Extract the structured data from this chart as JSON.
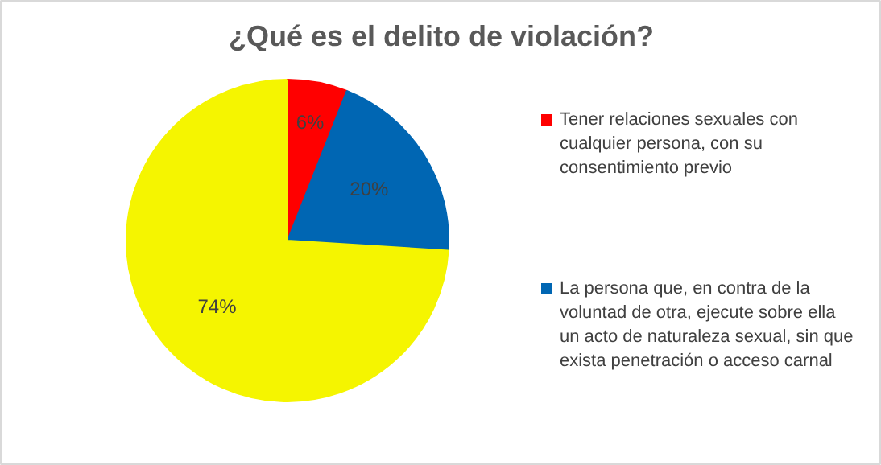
{
  "chart_data": {
    "type": "pie",
    "title": "¿Qué es el delito de violación?",
    "categories": [
      "Tener relaciones sexuales con cualquier persona, con su consentimiento previo",
      "La persona que, en contra de la voluntad de otra, ejecute sobre ella un acto de naturaleza sexual, sin que exista penetración o acceso carnal",
      null
    ],
    "values": [
      6,
      20,
      74
    ],
    "colors": [
      "#ff0000",
      "#0066b3",
      "#f5f500"
    ],
    "value_labels": [
      "6%",
      "20%",
      "74%"
    ],
    "legend": "right"
  }
}
